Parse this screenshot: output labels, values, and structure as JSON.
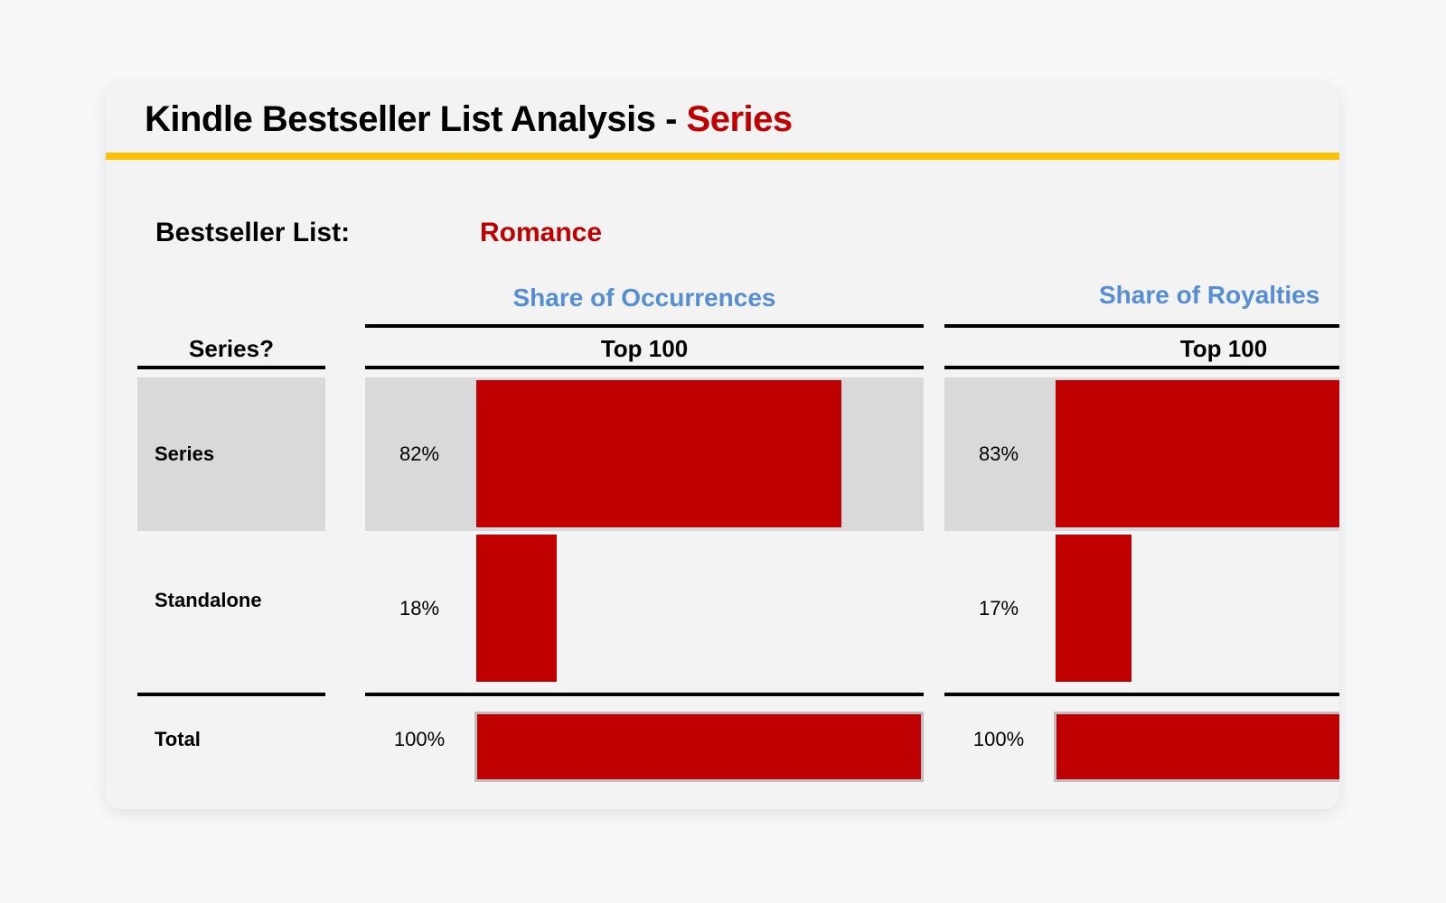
{
  "title": {
    "main": "Kindle Bestseller List Analysis - ",
    "accent": "Series"
  },
  "bestseller_list": {
    "label": "Bestseller List:",
    "value": "Romance"
  },
  "colors": {
    "accent_red": "#C00000",
    "rule_yellow": "#FFC000",
    "section_blue": "#558ED5",
    "row_highlight": "#D9D9D9"
  },
  "table": {
    "row_header": "Series?",
    "rows": [
      "Series",
      "Standalone"
    ],
    "total_label": "Total",
    "sections": [
      {
        "title": "Share of Occurrences",
        "column": "Top 100",
        "values": [
          82,
          18
        ],
        "labels": [
          "82%",
          "18%"
        ],
        "total": 100,
        "total_label": "100%"
      },
      {
        "title": "Share of Royalties",
        "column": "Top 100",
        "values": [
          83,
          17
        ],
        "labels": [
          "83%",
          "17%"
        ],
        "total": 100,
        "total_label": "100%"
      }
    ]
  }
}
